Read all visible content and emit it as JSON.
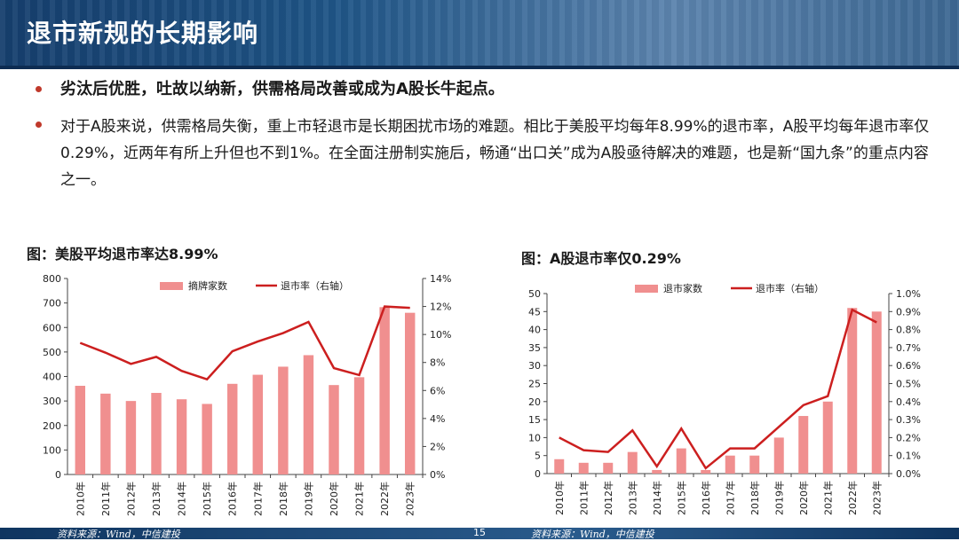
{
  "slide": {
    "title": "退市新规的长期影响",
    "bullets": [
      "劣汰后优胜，吐故以纳新，供需格局改善或成为A股长牛起点。",
      "对于A股来说，供需格局失衡，重上市轻退市是长期困扰市场的难题。相比于美股平均每年8.99%的退市率，A股平均每年退市率仅0.29%，近两年有所上升但也不到1%。在全面注册制实施后，畅通“出口关”成为A股亟待解决的难题，也是新“国九条”的重点内容之一。"
    ],
    "footer_left": "资料来源：Wind，中信建投",
    "footer_right": "资料来源：Wind，中信建投",
    "page_number": "15"
  },
  "colors": {
    "bar": "#f08f8f",
    "line": "#cc1f1f",
    "header": "#1f5587"
  },
  "chart_data": [
    {
      "type": "bar",
      "title": "图：美股平均退市率达8.99%",
      "categories": [
        "2010年",
        "2011年",
        "2012年",
        "2013年",
        "2014年",
        "2015年",
        "2016年",
        "2017年",
        "2018年",
        "2019年",
        "2020年",
        "2021年",
        "2022年",
        "2023年"
      ],
      "series": [
        {
          "name": "摘牌家数",
          "type": "bar",
          "axis": "left",
          "values": [
            362,
            330,
            300,
            333,
            307,
            288,
            370,
            407,
            440,
            487,
            365,
            397,
            683,
            660
          ]
        },
        {
          "name": "退市率（右轴）",
          "type": "line",
          "axis": "right",
          "values": [
            9.4,
            8.7,
            7.9,
            8.4,
            7.4,
            6.8,
            8.8,
            9.5,
            10.1,
            10.9,
            7.6,
            7.1,
            12.0,
            11.9
          ]
        }
      ],
      "yleft": {
        "ticks": [
          "0",
          "100",
          "200",
          "300",
          "400",
          "500",
          "600",
          "700",
          "800"
        ],
        "min": 0,
        "max": 800
      },
      "yright": {
        "ticks": [
          "0%",
          "2%",
          "4%",
          "6%",
          "8%",
          "10%",
          "12%",
          "14%"
        ],
        "min": 0,
        "max": 14
      },
      "legend": "top"
    },
    {
      "type": "bar",
      "title": "图：A股退市率仅0.29%",
      "categories": [
        "2010年",
        "2011年",
        "2012年",
        "2013年",
        "2014年",
        "2015年",
        "2016年",
        "2017年",
        "2018年",
        "2019年",
        "2020年",
        "2021年",
        "2022年",
        "2023年"
      ],
      "series": [
        {
          "name": "退市家数",
          "type": "bar",
          "axis": "left",
          "values": [
            4,
            3,
            3,
            6,
            1,
            7,
            1,
            5,
            5,
            10,
            16,
            20,
            46,
            45
          ]
        },
        {
          "name": "退市率（右轴）",
          "type": "line",
          "axis": "right",
          "values": [
            0.2,
            0.13,
            0.12,
            0.24,
            0.04,
            0.25,
            0.03,
            0.14,
            0.14,
            0.26,
            0.38,
            0.43,
            0.91,
            0.84
          ]
        }
      ],
      "yleft": {
        "ticks": [
          "0",
          "5",
          "10",
          "15",
          "20",
          "25",
          "30",
          "35",
          "40",
          "45",
          "50"
        ],
        "min": 0,
        "max": 50
      },
      "yright": {
        "ticks": [
          "0.0%",
          "0.1%",
          "0.2%",
          "0.3%",
          "0.4%",
          "0.5%",
          "0.6%",
          "0.7%",
          "0.8%",
          "0.9%",
          "1.0%"
        ],
        "min": 0,
        "max": 1.0
      },
      "legend": "top"
    }
  ]
}
